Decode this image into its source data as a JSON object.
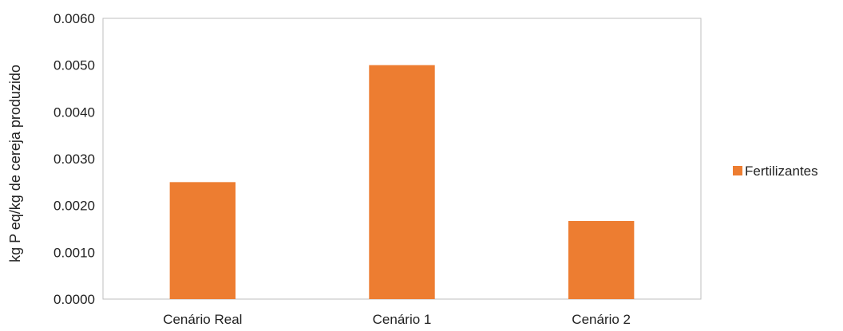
{
  "chart_data": {
    "type": "bar",
    "categories": [
      "Cenário Real",
      "Cenário 1",
      "Cenário 2"
    ],
    "series": [
      {
        "name": "Fertilizantes",
        "values": [
          0.0025,
          0.005,
          0.00167
        ],
        "color": "#ED7D31"
      }
    ],
    "ylabel": "kg P eq/kg de cereja produzido",
    "ylim": [
      0,
      0.006
    ],
    "yticks": [
      "0.0000",
      "0.0010",
      "0.0020",
      "0.0030",
      "0.0040",
      "0.0050",
      "0.0060"
    ],
    "grid": false,
    "legend_position": "right"
  }
}
